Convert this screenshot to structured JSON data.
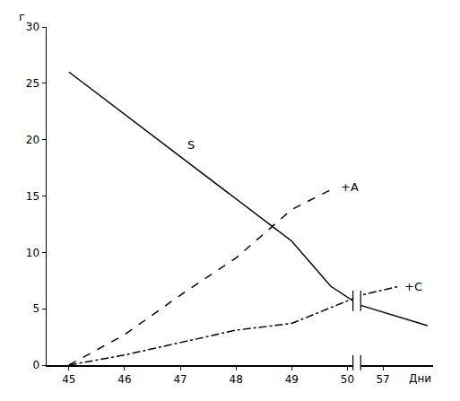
{
  "chart_data": {
    "type": "line",
    "x_label": "Дни",
    "y_label": "г",
    "xlim": [
      44.6,
      57.9
    ],
    "x_break": [
      50.1,
      56.6
    ],
    "xticks": [
      45,
      46,
      47,
      48,
      49,
      50,
      57
    ],
    "ylim": [
      0,
      30
    ],
    "yticks": [
      0,
      5,
      10,
      15,
      20,
      25,
      30
    ],
    "grid": false,
    "series": [
      {
        "name": "S",
        "color": "#000000",
        "line_style": "solid",
        "x": [
          45,
          49,
          49.7,
          50.1,
          56.6,
          57.8
        ],
        "values": [
          26,
          11,
          7,
          5.7,
          5.3,
          3.5
        ]
      },
      {
        "name": "+A",
        "color": "#000000",
        "line_style": "dash",
        "x": [
          45,
          46,
          47,
          48,
          49,
          49.8
        ],
        "values": [
          0,
          2.7,
          6.2,
          9.5,
          13.8,
          15.8
        ]
      },
      {
        "name": "+C",
        "color": "#000000",
        "line_style": "dashdot",
        "x": [
          45,
          46,
          47,
          48,
          49,
          50.1,
          56.6,
          57.3
        ],
        "values": [
          0,
          0.9,
          2,
          3.1,
          3.7,
          5.9,
          6.2,
          7
        ]
      }
    ]
  }
}
